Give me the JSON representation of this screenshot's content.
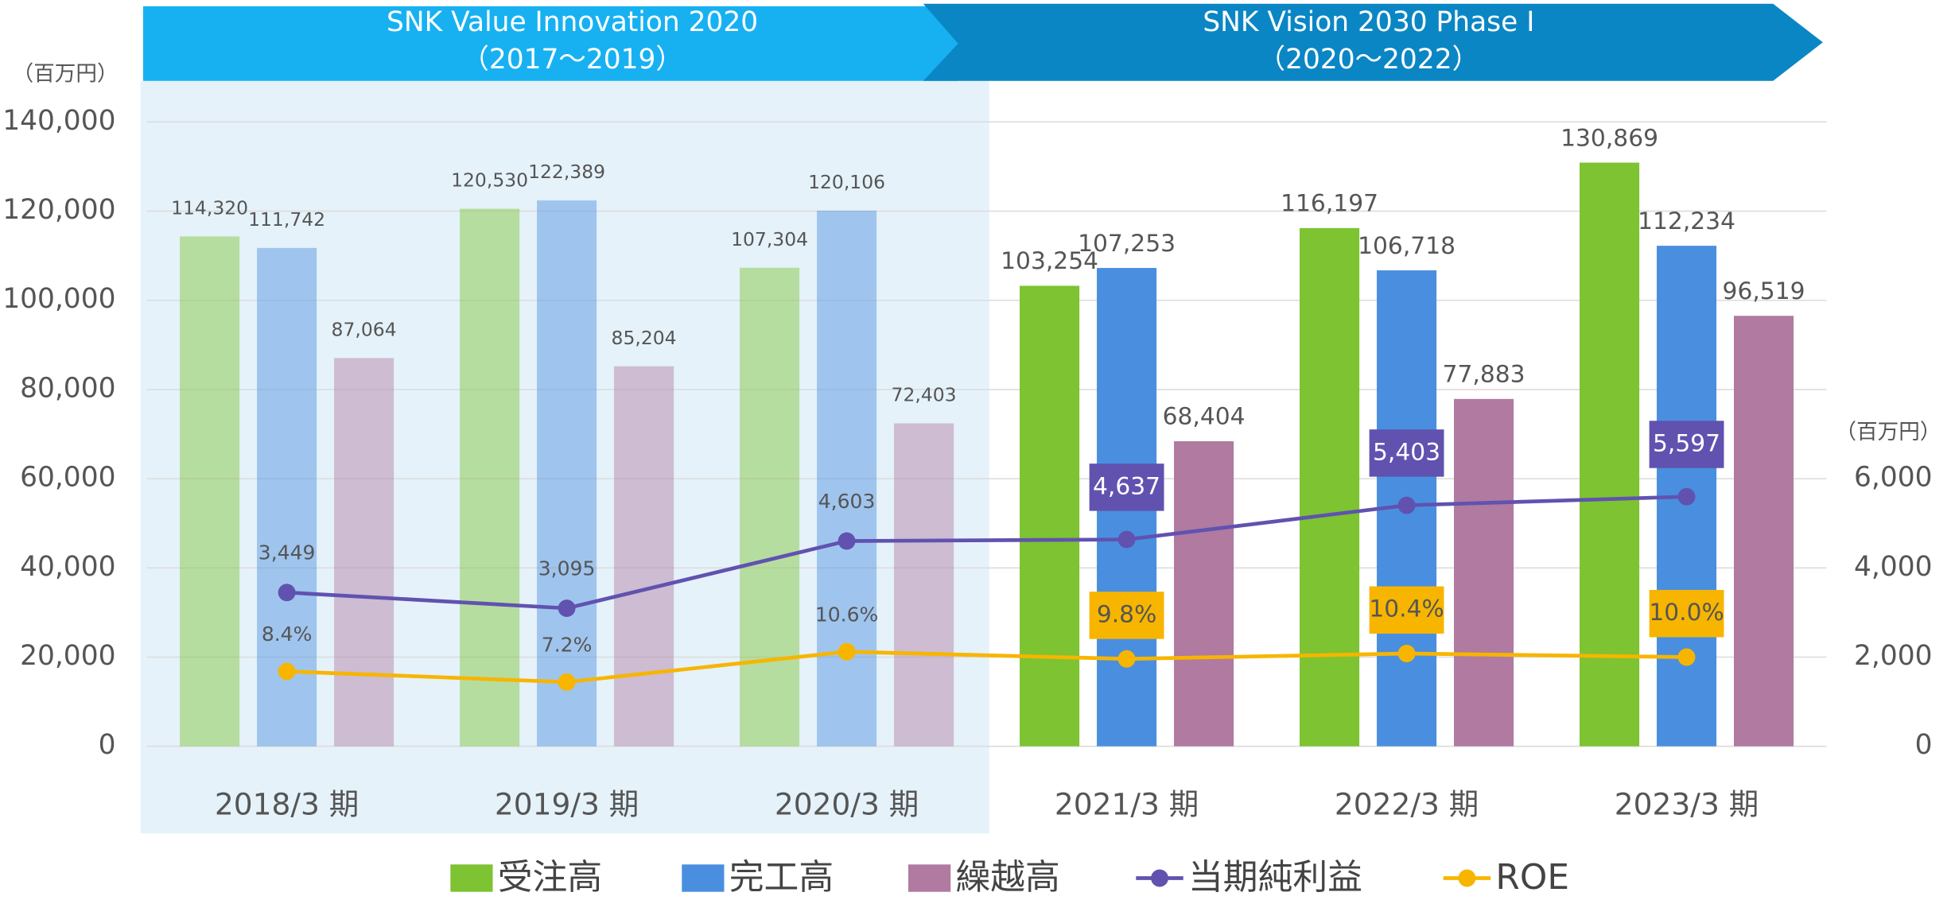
{
  "chart_data": {
    "type": "bar",
    "phases": [
      {
        "title": "SNK Value Innovation 2020",
        "subtitle": "（2017～2019）"
      },
      {
        "title": "SNK Vision 2030 Phase Ⅰ",
        "subtitle": "（2020～2022）"
      }
    ],
    "ylabel": "（百万円）",
    "y2label": "（百万円）",
    "categories": [
      "2018/3 期",
      "2019/3 期",
      "2020/3 期",
      "2021/3 期",
      "2022/3 期",
      "2023/3 期"
    ],
    "series": [
      {
        "name": "受注高",
        "type": "bar",
        "color": "#7dc332",
        "values": [
          114320,
          120530,
          107304,
          103254,
          116197,
          130869
        ],
        "value_labels": [
          "114,320",
          "120,530",
          "107,304",
          "103,254",
          "116,197",
          "130,869"
        ]
      },
      {
        "name": "完工高",
        "type": "bar",
        "color": "#4a8fdf",
        "values": [
          111742,
          122389,
          120106,
          107253,
          106718,
          112234
        ],
        "value_labels": [
          "111,742",
          "122,389",
          "120,106",
          "107,253",
          "106,718",
          "112,234"
        ]
      },
      {
        "name": "繰越高",
        "type": "bar",
        "color": "#b07aa1",
        "values": [
          87064,
          85204,
          72403,
          68404,
          77883,
          96519
        ],
        "value_labels": [
          "87,064",
          "85,204",
          "72,403",
          "68,404",
          "77,883",
          "96,519"
        ]
      },
      {
        "name": "当期純利益",
        "type": "line",
        "axis": "y2",
        "color": "#6152b0",
        "values": [
          3449,
          3095,
          4603,
          4637,
          5403,
          5597
        ],
        "value_labels": [
          "3,449",
          "3,095",
          "4,603",
          "4,637",
          "5,403",
          "5,597"
        ]
      },
      {
        "name": "ROE",
        "type": "line",
        "axis": "y3",
        "color": "#f7b500",
        "values": [
          8.4,
          7.2,
          10.6,
          9.8,
          10.4,
          10.0
        ],
        "value_labels": [
          "8.4%",
          "7.2%",
          "10.6%",
          "9.8%",
          "10.4%",
          "10.0%"
        ]
      }
    ],
    "ylim": [
      0,
      140000
    ],
    "yticks": [
      0,
      {
        "value": 20000,
        "label": "20,000"
      },
      {
        "value": 40000,
        "label": "40,000"
      },
      {
        "value": 60000,
        "label": "60,000"
      },
      {
        "value": 80000,
        "label": "80,000"
      },
      {
        "value": 100000,
        "label": "100,000"
      },
      {
        "value": 120000,
        "label": "120,000"
      },
      {
        "value": 140000,
        "label": "140,000"
      }
    ],
    "y2lim": [
      0,
      14000
    ],
    "y2ticks": [
      0,
      {
        "value": 2000,
        "label": "2,000"
      },
      {
        "value": 4000,
        "label": "4,000"
      },
      {
        "value": 6000,
        "label": "6,000"
      }
    ],
    "y3lim": [
      0,
      70
    ],
    "grid": true,
    "legend": "bottom"
  }
}
